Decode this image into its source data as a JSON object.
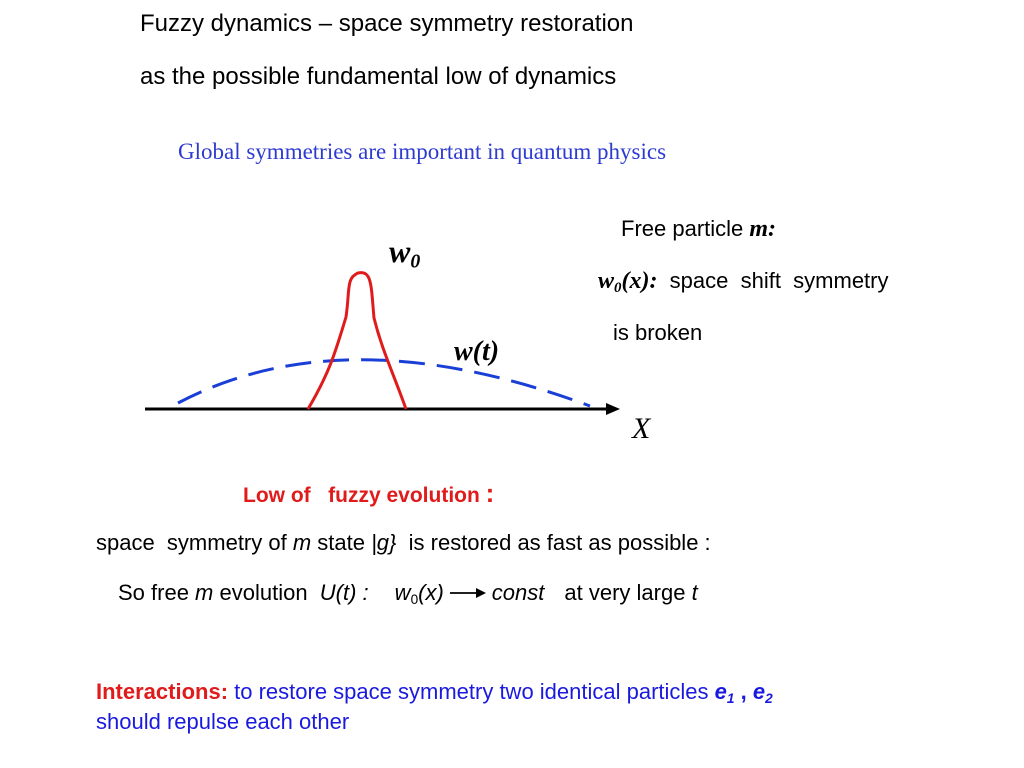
{
  "title": {
    "line1": "Fuzzy dynamics – space symmetry restoration",
    "line2": "as the possible fundamental low of  dynamics"
  },
  "subtitle": "Global  symmetries are  important in quantum physics",
  "diagram": {
    "label_w0": "w",
    "label_w0_sub": "0",
    "label_wt": "w(t)",
    "axis_label": "X",
    "colors": {
      "peak": "#e01b1b",
      "spread": "#1a3fd6",
      "axis": "#000000"
    }
  },
  "free_particle": {
    "label": "Free particle ",
    "mass": "m:",
    "w": "w",
    "w_sub": "0",
    "w_arg": "(x):",
    "line2_text": "  space  shift  symmetry",
    "line3": "is broken"
  },
  "law": {
    "heading": "Low of   fuzzy evolution ",
    "colon": ":"
  },
  "statement": {
    "p1": "space  symmetry of ",
    "m": "m",
    "p2": " state ",
    "g": "|g}",
    "p3": "  is restored as fast as possible :"
  },
  "evolution": {
    "p1": "So free ",
    "m": "m",
    "p2": " evolution  ",
    "u": "U(t) :",
    "w": "w",
    "w_sub": "0",
    "w_arg": "(x)",
    "const": "const",
    "p3": "at very large ",
    "t": "t"
  },
  "interactions": {
    "label": "Interactions:",
    "text": " to restore space symmetry two identical particles ",
    "e": "e",
    "e1_sub": "1",
    "sep": " , ",
    "e2_sub": "2",
    "line2": "should repulse each other"
  }
}
